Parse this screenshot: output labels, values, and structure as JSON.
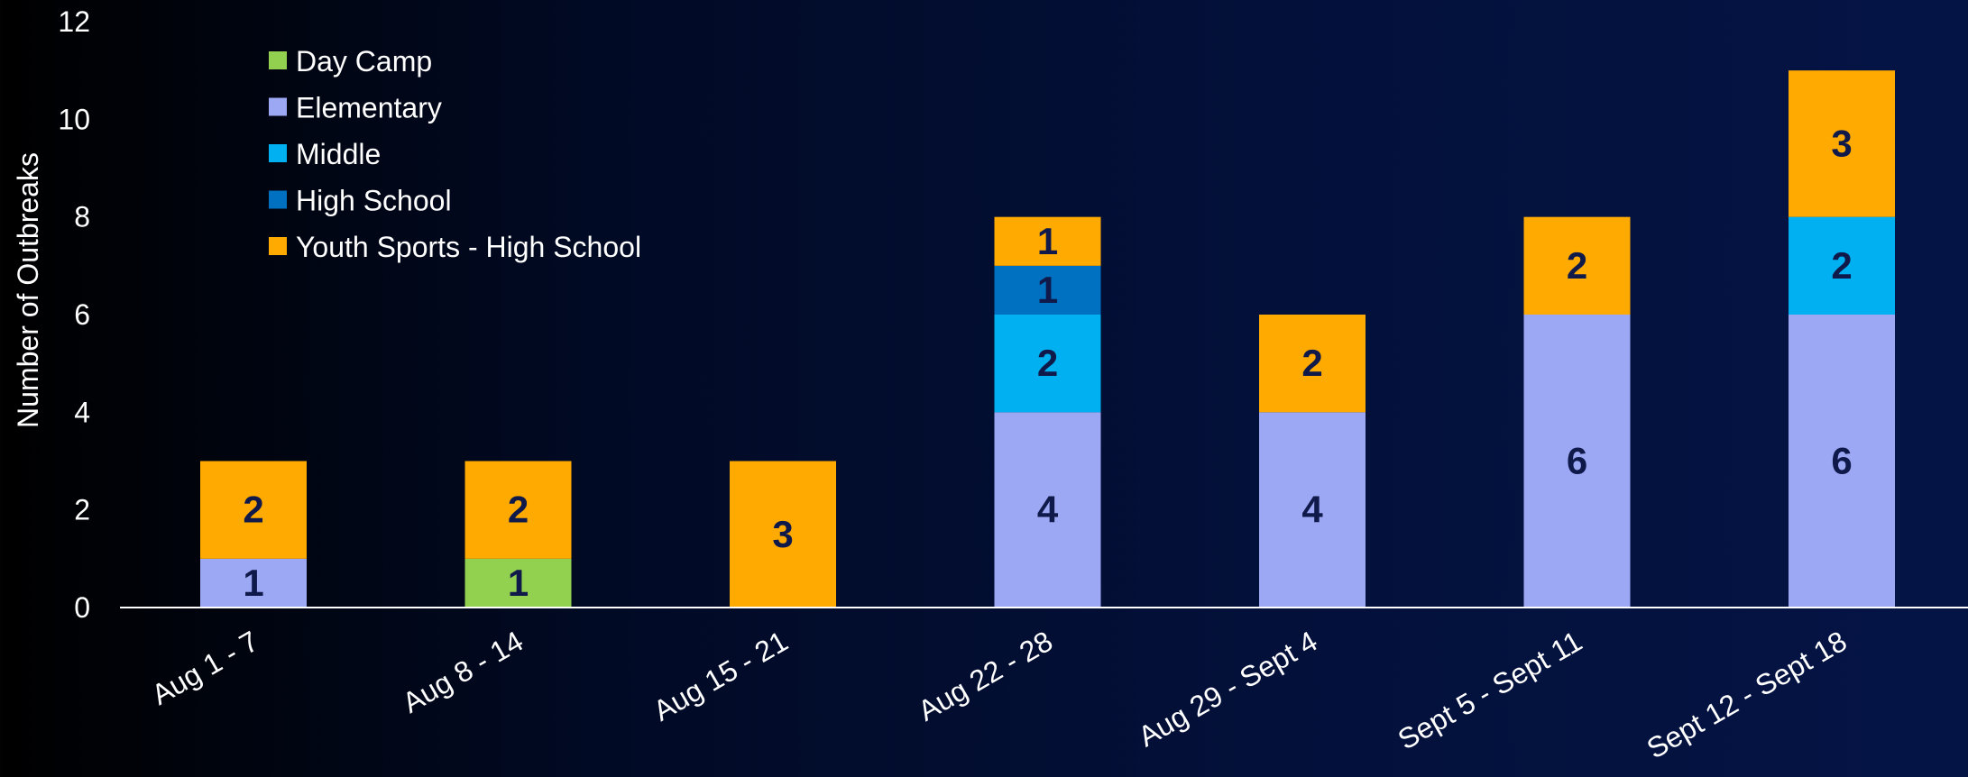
{
  "chart_data": {
    "type": "bar",
    "stacked": true,
    "title": "",
    "xlabel": "",
    "ylabel": "Number of Outbreaks",
    "ylim": [
      0,
      12
    ],
    "yticks": [
      0,
      2,
      4,
      6,
      8,
      10,
      12
    ],
    "grid": false,
    "legend_position": "top-left",
    "categories": [
      "Aug 1 - 7",
      "Aug 8 - 14",
      "Aug 15 - 21",
      "Aug 22 - 28",
      "Aug 29 - Sept 4",
      "Sept 5 - Sept 11",
      "Sept 12 - Sept 18"
    ],
    "series": [
      {
        "name": "Day Camp",
        "color": "#92d050",
        "values": [
          0,
          1,
          0,
          0,
          0,
          0,
          0
        ]
      },
      {
        "name": "Elementary",
        "color": "#9da8f5",
        "values": [
          1,
          0,
          0,
          4,
          4,
          6,
          6
        ]
      },
      {
        "name": "Middle",
        "color": "#00b0f0",
        "values": [
          0,
          0,
          0,
          2,
          0,
          0,
          2
        ]
      },
      {
        "name": "High School",
        "color": "#0070c0",
        "values": [
          0,
          0,
          0,
          1,
          0,
          0,
          0
        ]
      },
      {
        "name": "Youth Sports - High School",
        "color": "#ffaa00",
        "values": [
          2,
          2,
          3,
          1,
          2,
          2,
          3
        ]
      }
    ]
  }
}
